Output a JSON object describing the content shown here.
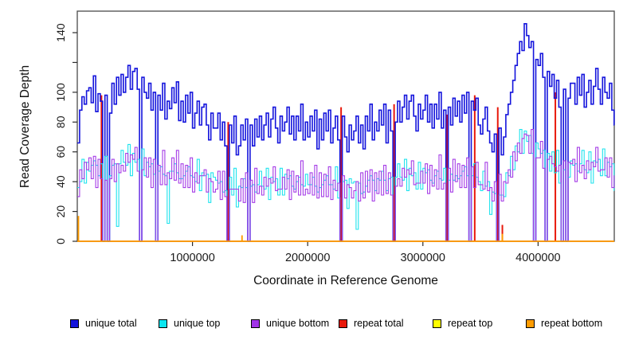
{
  "chart_data": {
    "type": "line",
    "title": "",
    "xlabel": "Coordinate in Reference Genome",
    "ylabel": "Read Coverage Depth",
    "xlim": [
      0,
      4680000
    ],
    "ylim": [
      0,
      154
    ],
    "grid": false,
    "legend_position": "bottom",
    "x_ticks": [
      1000000,
      2000000,
      3000000,
      4000000
    ],
    "x_tick_labels": [
      "1000000",
      "2000000",
      "3000000",
      "4000000"
    ],
    "y_ticks": [
      0,
      20,
      40,
      60,
      80,
      100,
      120,
      140
    ],
    "y_tick_labels": [
      "0",
      "20",
      "40",
      "60",
      "80",
      "100",
      "",
      "140"
    ],
    "bin_size": 20000,
    "axis_color": "#4a4a4a",
    "tick_color": "#2b2b2b",
    "series": [
      {
        "name": "unique total",
        "color": "#1414DC",
        "line_width": 1.6,
        "style": "step",
        "values": [
          66,
          88,
          97,
          92,
          101,
          103,
          93,
          111,
          87,
          99,
          94,
          0,
          98,
          0,
          86,
          106,
          92,
          110,
          98,
          112,
          100,
          110,
          118,
          102,
          114,
          116,
          102,
          0,
          110,
          100,
          96,
          106,
          88,
          100,
          0,
          98,
          88,
          106,
          82,
          94,
          89,
          103,
          93,
          107,
          81,
          94,
          80,
          98,
          86,
          100,
          76,
          86,
          94,
          78,
          90,
          92,
          78,
          68,
          86,
          76,
          76,
          86,
          68,
          80,
          64,
          0,
          78,
          66,
          84,
          58,
          64,
          78,
          68,
          82,
          0,
          78,
          64,
          82,
          70,
          84,
          68,
          78,
          86,
          70,
          82,
          90,
          76,
          66,
          84,
          74,
          80,
          90,
          72,
          84,
          68,
          84,
          74,
          92,
          68,
          80,
          70,
          84,
          74,
          88,
          62,
          82,
          68,
          86,
          74,
          88,
          66,
          76,
          84,
          68,
          0,
          84,
          70,
          60,
          78,
          68,
          74,
          84,
          66,
          78,
          62,
          84,
          74,
          92,
          68,
          80,
          74,
          88,
          78,
          92,
          66,
          88,
          74,
          0,
          80,
          94,
          80,
          90,
          98,
          82,
          94,
          98,
          84,
          74,
          92,
          82,
          88,
          98,
          80,
          92,
          76,
          92,
          82,
          100,
          76,
          88,
          0,
          90,
          78,
          96,
          84,
          94,
          80,
          98,
          86,
          100,
          0,
          94,
          88,
          96,
          78,
          72,
          82,
          90,
          74,
          66,
          60,
          72,
          0,
          76,
          58,
          70,
          85,
          92,
          100,
          108,
          118,
          126,
          134,
          128,
          146,
          138,
          130,
          134,
          0,
          122,
          118,
          126,
          110,
          0,
          114,
          104,
          112,
          96,
          108,
          90,
          0,
          102,
          0,
          96,
          106,
          106,
          92,
          110,
          98,
          112,
          90,
          100,
          108,
          92,
          104,
          116,
          102,
          92,
          110,
          100,
          96,
          106,
          88,
          78
        ]
      },
      {
        "name": "unique top",
        "color": "#1FE3EE",
        "line_width": 1.1,
        "style": "step",
        "values": [
          36,
          40,
          55,
          39,
          53,
          47,
          51,
          54,
          51,
          44,
          52,
          0,
          57,
          0,
          44,
          51,
          52,
          10,
          52,
          61,
          53,
          51,
          65,
          44,
          59,
          53,
          55,
          0,
          62,
          44,
          53,
          50,
          52,
          45,
          0,
          47,
          50,
          45,
          44,
          12,
          47,
          47,
          52,
          46,
          42,
          42,
          44,
          47,
          50,
          44,
          43,
          40,
          55,
          34,
          46,
          44,
          45,
          26,
          46,
          43,
          41,
          39,
          40,
          33,
          34,
          0,
          43,
          31,
          49,
          23,
          37,
          36,
          42,
          36,
          0,
          37,
          38,
          33,
          38,
          47,
          37,
          35,
          49,
          28,
          43,
          40,
          42,
          31,
          49,
          31,
          45,
          42,
          44,
          37,
          35,
          40,
          43,
          38,
          37,
          45,
          38,
          38,
          43,
          37,
          33,
          36,
          38,
          41,
          44,
          38,
          38,
          35,
          50,
          29,
          0,
          40,
          41,
          22,
          42,
          39,
          40,
          8,
          39,
          32,
          33,
          37,
          41,
          44,
          41,
          34,
          42,
          41,
          47,
          41,
          34,
          42,
          43,
          0,
          43,
          52,
          43,
          41,
          55,
          34,
          49,
          44,
          46,
          35,
          53,
          35,
          49,
          46,
          48,
          41,
          39,
          44,
          47,
          42,
          41,
          49,
          0,
          41,
          45,
          41,
          44,
          42,
          44,
          47,
          50,
          44,
          0,
          44,
          52,
          43,
          40,
          34,
          47,
          37,
          40,
          18,
          33,
          32,
          0,
          31,
          31,
          30,
          46,
          44,
          57,
          48,
          64,
          60,
          75,
          59,
          74,
          67,
          71,
          59,
          0,
          66,
          62,
          59,
          61,
          0,
          59,
          47,
          60,
          46,
          61,
          39,
          0,
          48,
          0,
          43,
          54,
          51,
          52,
          47,
          52,
          61,
          48,
          46,
          60,
          39,
          54,
          53,
          55,
          44,
          62,
          44,
          53,
          50,
          52,
          34
        ]
      },
      {
        "name": "unique bottom",
        "color": "#A53CE6",
        "line_width": 1.1,
        "style": "step",
        "values": [
          30,
          48,
          42,
          53,
          48,
          56,
          42,
          57,
          36,
          55,
          42,
          0,
          41,
          0,
          42,
          55,
          40,
          52,
          46,
          51,
          47,
          59,
          53,
          58,
          55,
          63,
          47,
          0,
          48,
          56,
          43,
          56,
          36,
          55,
          0,
          51,
          38,
          61,
          38,
          46,
          42,
          56,
          41,
          61,
          39,
          52,
          36,
          51,
          36,
          56,
          33,
          46,
          39,
          44,
          44,
          48,
          33,
          42,
          40,
          33,
          35,
          47,
          28,
          47,
          30,
          0,
          35,
          35,
          35,
          35,
          27,
          42,
          26,
          46,
          0,
          41,
          26,
          49,
          32,
          37,
          31,
          43,
          37,
          42,
          39,
          50,
          34,
          35,
          35,
          43,
          35,
          48,
          28,
          47,
          33,
          44,
          31,
          54,
          31,
          35,
          32,
          46,
          31,
          51,
          29,
          46,
          30,
          45,
          30,
          50,
          28,
          41,
          34,
          39,
          0,
          44,
          29,
          38,
          36,
          29,
          34,
          40,
          27,
          46,
          29,
          47,
          33,
          48,
          27,
          46,
          32,
          47,
          31,
          51,
          32,
          46,
          31,
          0,
          37,
          42,
          37,
          49,
          43,
          48,
          45,
          54,
          38,
          39,
          39,
          47,
          39,
          52,
          32,
          51,
          37,
          48,
          35,
          58,
          35,
          39,
          0,
          49,
          33,
          55,
          40,
          52,
          36,
          51,
          36,
          56,
          0,
          50,
          36,
          53,
          38,
          38,
          35,
          53,
          34,
          36,
          27,
          40,
          0,
          45,
          27,
          40,
          39,
          48,
          43,
          60,
          54,
          66,
          59,
          69,
          72,
          71,
          59,
          75,
          0,
          56,
          56,
          67,
          49,
          0,
          55,
          57,
          52,
          50,
          47,
          51,
          0,
          54,
          0,
          53,
          52,
          55,
          40,
          63,
          46,
          51,
          42,
          54,
          48,
          53,
          50,
          63,
          47,
          48,
          48,
          56,
          43,
          56,
          36,
          44
        ]
      },
      {
        "name": "repeat total",
        "color": "#E8190B",
        "line_width": 1.6,
        "style": "spikes",
        "baseline": 0,
        "spike_bins": [
          10,
          65,
          114,
          137,
          160,
          172,
          182,
          184,
          207
        ],
        "spike_values": [
          98,
          80,
          90,
          92,
          85,
          98,
          90,
          11,
          100
        ]
      },
      {
        "name": "repeat top",
        "color": "#FFFF00",
        "line_width": 1.2,
        "style": "spikes",
        "baseline": 0,
        "spike_bins": [],
        "spike_values": []
      },
      {
        "name": "repeat bottom",
        "color": "#FF9C00",
        "line_width": 1.5,
        "style": "spikes",
        "baseline": 0,
        "spike_bins": [
          0,
          71,
          184
        ],
        "spike_values": [
          17,
          4,
          5
        ]
      }
    ],
    "legend": [
      {
        "label": "unique total",
        "color": "#1414DC"
      },
      {
        "label": "unique top",
        "color": "#0CE6F0"
      },
      {
        "label": "unique bottom",
        "color": "#A133E8"
      },
      {
        "label": "repeat total",
        "color": "#E8190B"
      },
      {
        "label": "repeat top",
        "color": "#FFFF00"
      },
      {
        "label": "repeat bottom",
        "color": "#FF9C00"
      }
    ]
  },
  "labels": {
    "x_axis_title": "Coordinate in Reference Genome",
    "y_axis_title": "Read Coverage Depth"
  }
}
